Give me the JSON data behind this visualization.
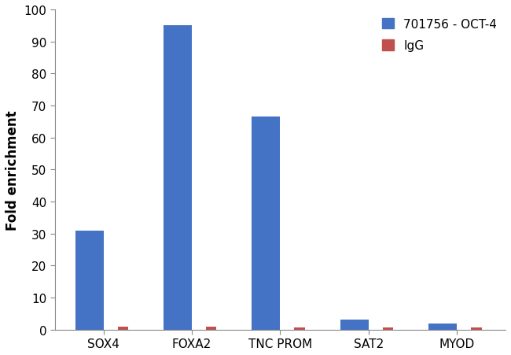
{
  "categories": [
    "SOX4",
    "FOXA2",
    "TNC PROM",
    "SAT2",
    "MYOD"
  ],
  "oct4_values": [
    31,
    95,
    66.5,
    3,
    2
  ],
  "igg_values": [
    0.8,
    0.8,
    0.7,
    0.7,
    0.7
  ],
  "oct4_color": "#4472C4",
  "igg_color": "#C0504D",
  "ylabel": "Fold enrichment",
  "ylim": [
    0,
    100
  ],
  "yticks": [
    0,
    10,
    20,
    30,
    40,
    50,
    60,
    70,
    80,
    90,
    100
  ],
  "legend_oct4": "701756 - OCT-4",
  "legend_igg": "IgG",
  "oct4_bar_width": 0.32,
  "igg_bar_width": 0.12,
  "background_color": "#ffffff",
  "axis_fontsize": 11,
  "legend_fontsize": 11,
  "ylabel_fontsize": 12
}
